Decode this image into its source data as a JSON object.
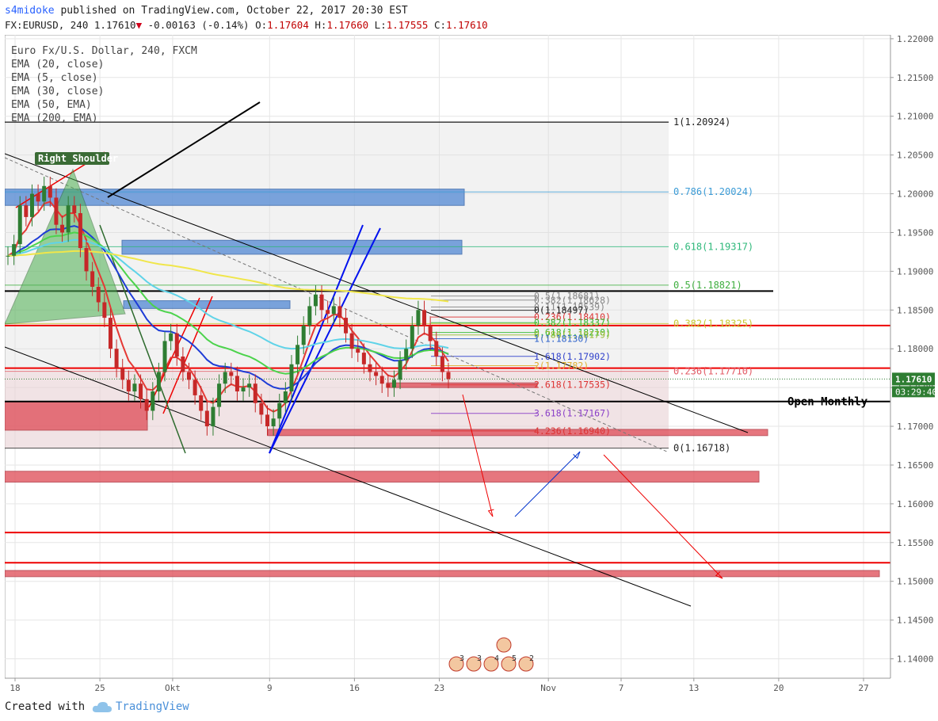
{
  "header": {
    "user": "s4midoke",
    "published": "published on TradingView.com, October 22, 2017 20:30 EST",
    "symbol": "FX:EURUSD, 240",
    "last": "1.17610",
    "change": "-0.00163 (-0.14%)",
    "o_label": "O:",
    "o_value": "1.17604",
    "h_label": "H:",
    "h_value": "1.17660",
    "l_label": "L:",
    "l_value": "1.17555",
    "c_label": "C:",
    "c_value": "1.17610"
  },
  "legend": [
    "Euro Fx/U.S. Dollar, 240, FXCM",
    "EMA (20, close)",
    "EMA (5, close)",
    "EMA (30, close)",
    "EMA (50, EMA)",
    "EMA (200, EMA)"
  ],
  "footer": {
    "created": "Created with",
    "brand": "TradingView"
  },
  "colors": {
    "background": "#ffffff",
    "up_candle": "#2e7d32",
    "down_candle": "#c62828",
    "grid": "#e6e6e6",
    "fib_shade": "#d9d9d9",
    "zone_blue": "#5b8fd6",
    "zone_red": "#e0545f",
    "price_badge": "#2e7d32",
    "ema_red": "#e53935",
    "ema_blue": "#1e3cd6",
    "ema_green": "#4cd34c",
    "ema_cyan": "#5fd3e8",
    "ema_yellow": "#f0e64a"
  },
  "chart_data": {
    "type": "candlestick",
    "symbol": "FX:EURUSD",
    "timeframe": "240",
    "ylim": [
      1.1375,
      1.2205
    ],
    "x_ticks": [
      {
        "label": "18",
        "day": 18
      },
      {
        "label": "25",
        "day": 25
      },
      {
        "label": "Okt",
        "day": 31
      },
      {
        "label": "9",
        "day": 39
      },
      {
        "label": "16",
        "day": 46
      },
      {
        "label": "23",
        "day": 53
      },
      {
        "label": "Nov",
        "day": 62
      },
      {
        "label": "7",
        "day": 68
      },
      {
        "label": "13",
        "day": 74
      },
      {
        "label": "20",
        "day": 81
      },
      {
        "label": "27",
        "day": 88
      }
    ],
    "y_ticks": [
      "1.22000",
      "1.21500",
      "1.21000",
      "1.20500",
      "1.20000",
      "1.19500",
      "1.19000",
      "1.18500",
      "1.18000",
      "1.17500",
      "1.17000",
      "1.16500",
      "1.16000",
      "1.15500",
      "1.15000",
      "1.14500",
      "1.14000"
    ],
    "last_price": {
      "label": "1.17610",
      "value": 1.1761
    },
    "countdown": "03:29:40",
    "candles_close": [
      1.192,
      1.1935,
      1.1985,
      1.197,
      1.2,
      1.199,
      1.201,
      1.1995,
      1.196,
      1.195,
      1.1985,
      1.1975,
      1.193,
      1.19,
      1.188,
      1.186,
      1.184,
      1.18,
      1.1775,
      1.176,
      1.1745,
      1.1755,
      1.1735,
      1.172,
      1.1745,
      1.177,
      1.181,
      1.182,
      1.179,
      1.177,
      1.176,
      1.174,
      1.172,
      1.17,
      1.1725,
      1.1755,
      1.177,
      1.1765,
      1.1745,
      1.175,
      1.1755,
      1.173,
      1.1715,
      1.17,
      1.171,
      1.173,
      1.1745,
      1.178,
      1.1805,
      1.183,
      1.1855,
      1.187,
      1.185,
      1.1845,
      1.1855,
      1.184,
      1.182,
      1.18,
      1.1795,
      1.178,
      1.177,
      1.1765,
      1.1755,
      1.175,
      1.176,
      1.1785,
      1.18,
      1.183,
      1.185,
      1.183,
      1.181,
      1.179,
      1.177,
      1.1761
    ],
    "fib_retracement": [
      {
        "label": "1(1.20924)",
        "value": 1.20924
      },
      {
        "label": "0.786(1.20024)",
        "value": 1.20024
      },
      {
        "label": "0.618(1.19317)",
        "value": 1.19317
      },
      {
        "label": "0.5(1.18821)",
        "value": 1.18821
      },
      {
        "label": "0.382(1.18325)",
        "value": 1.18325
      },
      {
        "label": "0.236(1.17710)",
        "value": 1.1771
      },
      {
        "label": "0(1.16718)",
        "value": 1.16718
      }
    ],
    "fib_extension": [
      {
        "label": "0.5(1.18681)",
        "value": 1.18681
      },
      {
        "label": "0.382(1.18628)",
        "value": 1.18628
      },
      {
        "label": "0.11(1.18539)",
        "value": 1.18539
      },
      {
        "label": "0(1.18497)",
        "value": 1.18497
      },
      {
        "label": "0.236(1.18410)",
        "value": 1.1841
      },
      {
        "label": "0.382(1.18337)",
        "value": 1.18337
      },
      {
        "label": "0.618(1.18210)",
        "value": 1.1821
      },
      {
        "label": "0.786(1.18179)",
        "value": 1.18179
      },
      {
        "label": "1(1.18130)",
        "value": 1.1813
      },
      {
        "label": "1.618(1.17902)",
        "value": 1.17902
      },
      {
        "label": "2(1.17782)",
        "value": 1.17782
      },
      {
        "label": "2.618(1.17535)",
        "value": 1.17535
      },
      {
        "label": "3.618(1.17167)",
        "value": 1.17167
      },
      {
        "label": "4.236(1.16940)",
        "value": 1.1694
      }
    ],
    "horizontal_levels": [
      {
        "label": "Open Monthly",
        "value": 1.1732
      }
    ],
    "annotations": [
      "Right Shoulder",
      "Open Monthly"
    ],
    "event_badges": [
      "3",
      "3",
      "4",
      "5",
      "2"
    ]
  }
}
